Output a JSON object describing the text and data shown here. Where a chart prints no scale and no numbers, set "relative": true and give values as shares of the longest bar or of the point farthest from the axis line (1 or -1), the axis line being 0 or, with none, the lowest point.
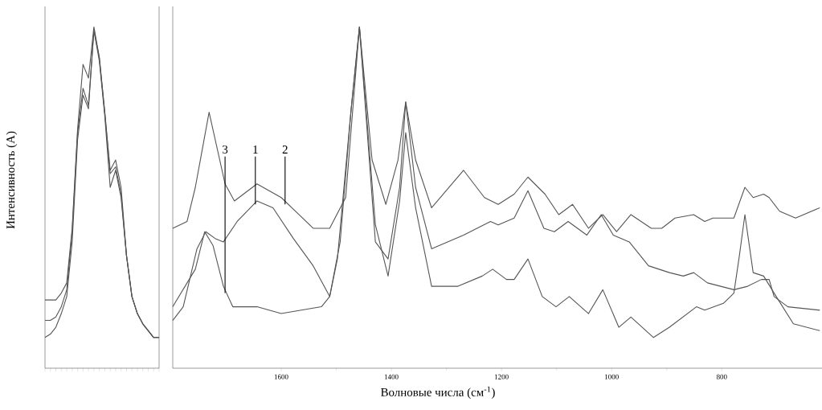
{
  "chart_data": [
    {
      "type": "line",
      "ylabel": "Интенсивность (А)",
      "relative": true,
      "categories": [
        null,
        null,
        null,
        null,
        null,
        null,
        null,
        null,
        null,
        null,
        null,
        null,
        null,
        null,
        null,
        null,
        null,
        null,
        null,
        null,
        null,
        null
      ],
      "series": [
        {
          "color": "#555555",
          "values": [
            0.2,
            0.2,
            0.2,
            0.22,
            0.25,
            0.41,
            0.7,
            0.89,
            0.85,
            1.0,
            0.91,
            0.75,
            0.58,
            0.61,
            0.53,
            0.33,
            0.21,
            0.16,
            0.13,
            0.11,
            0.09,
            0.09
          ]
        },
        {
          "color": "#555555",
          "values": [
            0.14,
            0.14,
            0.15,
            0.18,
            0.23,
            0.4,
            0.69,
            0.82,
            0.77,
            0.99,
            0.91,
            0.75,
            0.57,
            0.59,
            0.51,
            0.33,
            0.21,
            0.16,
            0.13,
            0.11,
            0.09,
            0.09
          ]
        },
        {
          "color": "#555555",
          "values": [
            0.09,
            0.1,
            0.12,
            0.16,
            0.21,
            0.37,
            0.67,
            0.8,
            0.76,
            0.99,
            0.9,
            0.74,
            0.53,
            0.58,
            0.5,
            0.33,
            0.21,
            0.16,
            0.13,
            0.11,
            0.09,
            0.09
          ]
        }
      ]
    },
    {
      "type": "line",
      "xlabel": "Волновые числа (см$^{-1}$)",
      "relative": true,
      "xlim": [
        1797,
        618
      ],
      "xticks": [
        1600,
        1400,
        1200,
        1000,
        800
      ],
      "series": [
        {
          "color": "#555555",
          "x": [
            1797,
            1771,
            1756,
            1731,
            1702,
            1685,
            1644,
            1600,
            1542,
            1512,
            1483,
            1458,
            1435,
            1410,
            1388,
            1374,
            1356,
            1327,
            1269,
            1231,
            1206,
            1177,
            1152,
            1121,
            1096,
            1071,
            1042,
            1016,
            991,
            965,
            928,
            909,
            885,
            851,
            831,
            816,
            778,
            758,
            743,
            724,
            714,
            695,
            666,
            622
          ],
          "values": [
            0.41,
            0.43,
            0.53,
            0.75,
            0.54,
            0.49,
            0.54,
            0.5,
            0.41,
            0.41,
            0.5,
            1.0,
            0.61,
            0.48,
            0.61,
            0.78,
            0.61,
            0.47,
            0.58,
            0.5,
            0.48,
            0.51,
            0.56,
            0.51,
            0.45,
            0.48,
            0.41,
            0.45,
            0.4,
            0.45,
            0.41,
            0.41,
            0.44,
            0.45,
            0.43,
            0.44,
            0.44,
            0.53,
            0.5,
            0.51,
            0.5,
            0.46,
            0.44,
            0.47
          ]
        },
        {
          "color": "#555555",
          "x": [
            1797,
            1778,
            1753,
            1737,
            1720,
            1705,
            1680,
            1644,
            1615,
            1578,
            1542,
            1512,
            1493,
            1473,
            1458,
            1429,
            1406,
            1385,
            1374,
            1356,
            1327,
            1269,
            1220,
            1206,
            1177,
            1152,
            1123,
            1104,
            1079,
            1045,
            1019,
            997,
            968,
            933,
            895,
            870,
            851,
            826,
            778,
            753,
            728,
            714,
            705,
            680,
            622
          ],
          "values": [
            0.14,
            0.18,
            0.35,
            0.4,
            0.38,
            0.37,
            0.43,
            0.49,
            0.47,
            0.38,
            0.3,
            0.21,
            0.37,
            0.76,
            1.0,
            0.37,
            0.32,
            0.53,
            0.78,
            0.53,
            0.35,
            0.39,
            0.43,
            0.42,
            0.44,
            0.52,
            0.41,
            0.4,
            0.43,
            0.39,
            0.45,
            0.39,
            0.37,
            0.3,
            0.28,
            0.27,
            0.28,
            0.25,
            0.23,
            0.24,
            0.26,
            0.26,
            0.21,
            0.18,
            0.17
          ]
        },
        {
          "color": "#555555",
          "x": [
            1797,
            1756,
            1739,
            1724,
            1705,
            1688,
            1644,
            1600,
            1527,
            1512,
            1498,
            1473,
            1458,
            1429,
            1406,
            1385,
            1374,
            1356,
            1327,
            1279,
            1235,
            1216,
            1191,
            1177,
            1152,
            1126,
            1101,
            1077,
            1042,
            1016,
            987,
            965,
            924,
            895,
            846,
            831,
            797,
            778,
            768,
            758,
            743,
            724,
            705,
            670,
            622
          ],
          "values": [
            0.18,
            0.29,
            0.4,
            0.36,
            0.24,
            0.18,
            0.18,
            0.16,
            0.18,
            0.21,
            0.32,
            0.76,
            1.0,
            0.42,
            0.27,
            0.49,
            0.69,
            0.47,
            0.24,
            0.24,
            0.27,
            0.29,
            0.26,
            0.26,
            0.32,
            0.21,
            0.18,
            0.21,
            0.16,
            0.23,
            0.12,
            0.15,
            0.09,
            0.12,
            0.18,
            0.17,
            0.19,
            0.22,
            0.33,
            0.45,
            0.28,
            0.27,
            0.22,
            0.13,
            0.11
          ]
        }
      ],
      "annotations": [
        {
          "text": "3",
          "x": 1702,
          "y": 0.22
        },
        {
          "text": "1",
          "x": 1647,
          "y": 0.48
        },
        {
          "text": "2",
          "x": 1593,
          "y": 0.48
        }
      ]
    }
  ]
}
